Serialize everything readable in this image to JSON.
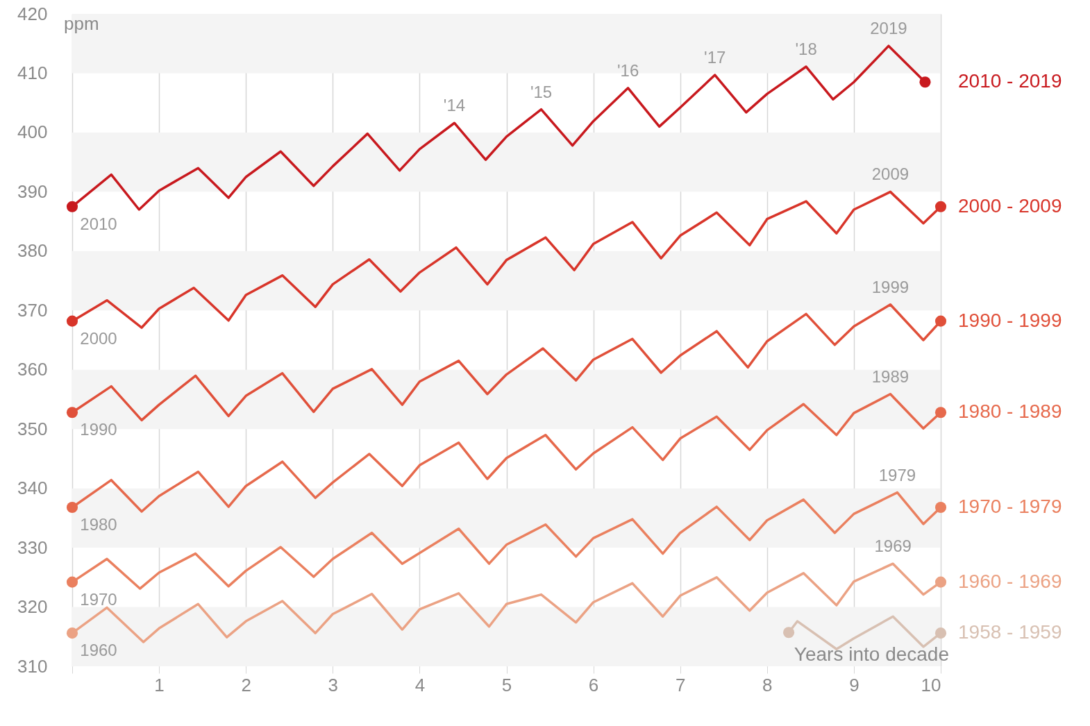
{
  "chart_data": {
    "type": "line",
    "xlabel": "Years into decade",
    "ylabel": "ppm",
    "xlim": [
      0,
      10
    ],
    "xticks": [
      {
        "value": 0,
        "label": null
      },
      1,
      2,
      3,
      4,
      5,
      6,
      7,
      8,
      9,
      10
    ],
    "ylim": [
      310,
      420
    ],
    "yticks": [
      310,
      320,
      330,
      340,
      350,
      360,
      370,
      380,
      390,
      400,
      410,
      420
    ],
    "grid": "x",
    "bands": [
      {
        "axis": "y",
        "from": 310,
        "to": 320,
        "color": "#f4f4f4"
      },
      {
        "axis": "y",
        "from": 330,
        "to": 340,
        "color": "#f4f4f4"
      },
      {
        "axis": "y",
        "from": 350,
        "to": 360,
        "color": "#f4f4f4"
      },
      {
        "axis": "y",
        "from": 370,
        "to": 380,
        "color": "#f4f4f4"
      },
      {
        "axis": "y",
        "from": 390,
        "to": 400,
        "color": "#f4f4f4"
      },
      {
        "axis": "y",
        "from": 410,
        "to": 420,
        "color": "#f4f4f4"
      }
    ],
    "series": [
      {
        "name": "2010 - 2019",
        "color": "#c8191e",
        "x": [
          0,
          0.45,
          0.77,
          1,
          1.45,
          1.8,
          2,
          2.4,
          2.78,
          3,
          3.4,
          3.77,
          4,
          4.4,
          4.76,
          5,
          5.4,
          5.76,
          6,
          6.4,
          6.76,
          7,
          7.4,
          7.76,
          8,
          8.45,
          8.76,
          9,
          9.4,
          9.82
        ],
        "values": [
          387.5,
          392.9,
          387.0,
          390.2,
          394.0,
          389.0,
          392.5,
          396.8,
          391.0,
          394.3,
          399.8,
          393.6,
          397.2,
          401.6,
          395.4,
          399.3,
          403.9,
          397.8,
          401.9,
          407.5,
          401.0,
          404.2,
          409.7,
          403.4,
          406.5,
          411.1,
          405.6,
          408.5,
          414.6,
          408.5
        ]
      },
      {
        "name": "2000 - 2009",
        "color": "#d8352a",
        "x": [
          0,
          0.4,
          0.8,
          1,
          1.4,
          1.8,
          2,
          2.42,
          2.8,
          3,
          3.42,
          3.78,
          4,
          4.42,
          4.78,
          5,
          5.45,
          5.78,
          6,
          6.45,
          6.78,
          7,
          7.42,
          7.8,
          8,
          8.45,
          8.8,
          9,
          9.42,
          9.8,
          10
        ],
        "values": [
          368.2,
          371.7,
          367.1,
          370.3,
          373.8,
          368.3,
          372.6,
          375.9,
          370.6,
          374.4,
          378.6,
          373.2,
          376.4,
          380.6,
          374.4,
          378.5,
          382.3,
          376.8,
          381.2,
          384.9,
          378.8,
          382.6,
          386.5,
          381.0,
          385.4,
          388.4,
          383.0,
          387.0,
          390.0,
          384.7,
          387.5
        ]
      },
      {
        "name": "1990 - 1999",
        "color": "#e0503a",
        "x": [
          0,
          0.45,
          0.8,
          1,
          1.42,
          1.8,
          2,
          2.42,
          2.78,
          3,
          3.45,
          3.8,
          4,
          4.45,
          4.78,
          5,
          5.42,
          5.8,
          6,
          6.45,
          6.78,
          7,
          7.42,
          7.78,
          8,
          8.45,
          8.78,
          9,
          9.42,
          9.8,
          10
        ],
        "values": [
          352.8,
          357.2,
          351.5,
          354.1,
          359.0,
          352.2,
          355.6,
          359.4,
          352.9,
          356.8,
          360.1,
          354.1,
          358.0,
          361.5,
          355.9,
          359.2,
          363.6,
          358.2,
          361.7,
          365.2,
          359.5,
          362.4,
          366.5,
          360.4,
          364.8,
          369.4,
          364.2,
          367.3,
          371.0,
          365.0,
          368.2
        ]
      },
      {
        "name": "1980 - 1989",
        "color": "#e6694c",
        "x": [
          0,
          0.45,
          0.8,
          1,
          1.45,
          1.8,
          2,
          2.42,
          2.8,
          3,
          3.42,
          3.8,
          4,
          4.45,
          4.78,
          5,
          5.45,
          5.8,
          6,
          6.45,
          6.8,
          7,
          7.42,
          7.8,
          8,
          8.42,
          8.8,
          9,
          9.42,
          9.8,
          10
        ],
        "values": [
          336.8,
          341.4,
          336.1,
          338.7,
          342.8,
          336.9,
          340.4,
          344.5,
          338.4,
          341.0,
          345.8,
          340.4,
          343.9,
          347.7,
          341.6,
          345.1,
          349.0,
          343.2,
          345.9,
          350.3,
          344.8,
          348.4,
          352.1,
          346.5,
          349.8,
          354.2,
          349.0,
          352.7,
          355.9,
          350.1,
          352.8
        ]
      },
      {
        "name": "1970 - 1979",
        "color": "#ea805f",
        "x": [
          0,
          0.4,
          0.78,
          1,
          1.42,
          1.8,
          2,
          2.4,
          2.78,
          3,
          3.45,
          3.8,
          4,
          4.45,
          4.8,
          5,
          5.45,
          5.8,
          6,
          6.45,
          6.8,
          7,
          7.42,
          7.8,
          8,
          8.42,
          8.78,
          9,
          9.5,
          9.8,
          10
        ],
        "values": [
          324.2,
          328.1,
          323.1,
          325.8,
          329.0,
          323.5,
          326.1,
          330.1,
          325.1,
          328.1,
          332.5,
          327.3,
          329.1,
          333.2,
          327.3,
          330.5,
          333.9,
          328.5,
          331.6,
          334.8,
          329.0,
          332.5,
          336.9,
          331.3,
          334.6,
          338.1,
          332.5,
          335.7,
          339.3,
          334.0,
          336.8
        ]
      },
      {
        "name": "1960 - 1969",
        "color": "#eba284",
        "x": [
          0,
          0.4,
          0.82,
          1,
          1.45,
          1.78,
          2,
          2.42,
          2.8,
          3,
          3.45,
          3.8,
          4,
          4.45,
          4.8,
          5,
          5.4,
          5.8,
          6,
          6.45,
          6.8,
          7,
          7.42,
          7.8,
          8,
          8.42,
          8.8,
          9,
          9.45,
          9.8,
          10
        ],
        "values": [
          315.6,
          319.9,
          314.1,
          316.4,
          320.5,
          314.9,
          317.6,
          321.0,
          315.6,
          318.8,
          322.2,
          316.2,
          319.6,
          322.3,
          316.7,
          320.5,
          322.1,
          317.4,
          320.8,
          324.0,
          318.4,
          321.9,
          325.0,
          319.4,
          322.4,
          325.7,
          320.3,
          324.3,
          327.3,
          322.1,
          324.2
        ]
      },
      {
        "name": "1958 - 1959",
        "color": "#d8c0b2",
        "x": [
          8.25,
          8.35,
          8.8,
          9,
          9.45,
          9.8,
          10
        ],
        "values": [
          315.7,
          317.6,
          312.9,
          314.7,
          318.4,
          313.3,
          315.6
        ]
      }
    ],
    "annotations": [
      {
        "text": "2010",
        "x": 0,
        "y": 387.5
      },
      {
        "text": "'14",
        "x": 4.4,
        "y": 401.6
      },
      {
        "text": "'15",
        "x": 5.4,
        "y": 403.9
      },
      {
        "text": "'16",
        "x": 6.4,
        "y": 407.5
      },
      {
        "text": "'17",
        "x": 7.4,
        "y": 409.7
      },
      {
        "text": "'18",
        "x": 8.45,
        "y": 411.1
      },
      {
        "text": "2019",
        "x": 9.4,
        "y": 414.6
      },
      {
        "text": "2009",
        "x": 9.42,
        "y": 390.0
      },
      {
        "text": "2000",
        "x": 0,
        "y": 368.2
      },
      {
        "text": "1999",
        "x": 9.42,
        "y": 371.0
      },
      {
        "text": "1990",
        "x": 0,
        "y": 352.8
      },
      {
        "text": "1989",
        "x": 9.42,
        "y": 355.9
      },
      {
        "text": "1980",
        "x": 0,
        "y": 336.8
      },
      {
        "text": "1979",
        "x": 9.5,
        "y": 339.3
      },
      {
        "text": "1970",
        "x": 0,
        "y": 324.2
      },
      {
        "text": "1969",
        "x": 9.45,
        "y": 327.3
      },
      {
        "text": "1960",
        "x": 0,
        "y": 315.6
      }
    ]
  }
}
